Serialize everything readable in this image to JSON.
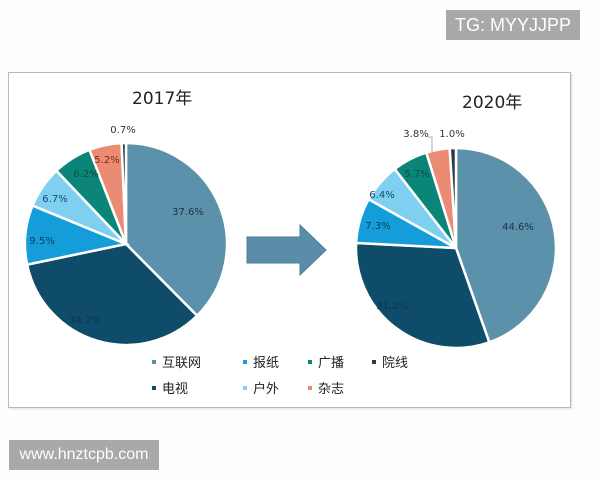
{
  "watermarks": {
    "top": "TG: MYYJJPP",
    "bottom": "www.hnztcpb.com"
  },
  "arrow_color": "#5a8ea8",
  "chart_data": [
    {
      "type": "pie",
      "title": "2017年",
      "categories": [
        "互联网",
        "电视",
        "报纸",
        "户外",
        "广播",
        "杂志",
        "院线"
      ],
      "values": [
        37.6,
        34.2,
        9.5,
        6.7,
        6.2,
        5.2,
        0.7
      ],
      "labels": [
        "37.6%",
        "34.2%",
        "9.5%",
        "6.7%",
        "6.2%",
        "5.2%",
        "0.7%"
      ],
      "start_angle": "top, clockwise",
      "legend_position": "bottom"
    },
    {
      "type": "pie",
      "title": "2020年",
      "categories": [
        "互联网",
        "电视",
        "报纸",
        "户外",
        "广播",
        "杂志",
        "院线"
      ],
      "values": [
        44.6,
        31.2,
        7.3,
        6.4,
        5.7,
        3.8,
        1.0
      ],
      "labels": [
        "44.6%",
        "31.2%",
        "7.3%",
        "6.4%",
        "5.7%",
        "3.8%",
        "1.0%"
      ],
      "start_angle": "top, clockwise",
      "legend_position": "bottom"
    }
  ],
  "colors": [
    "#5c91ab",
    "#0e4c6a",
    "#149dd8",
    "#7fd0f0",
    "#0a8577",
    "#ec8b74",
    "#2a3a48"
  ],
  "label_colors": [
    "#1c3348",
    "#0b3550",
    "#0e3f66",
    "#134a78",
    "#0e4d46",
    "#7a2a1d",
    "#333333"
  ],
  "legend": {
    "row1": [
      {
        "label": "互联网",
        "ci": 0
      },
      {
        "label": "报纸",
        "ci": 2
      },
      {
        "label": "广播",
        "ci": 4
      },
      {
        "label": "院线",
        "ci": 6
      }
    ],
    "row2": [
      {
        "label": "电视",
        "ci": 1
      },
      {
        "label": "户外",
        "ci": 3
      },
      {
        "label": "杂志",
        "ci": 5
      }
    ]
  }
}
